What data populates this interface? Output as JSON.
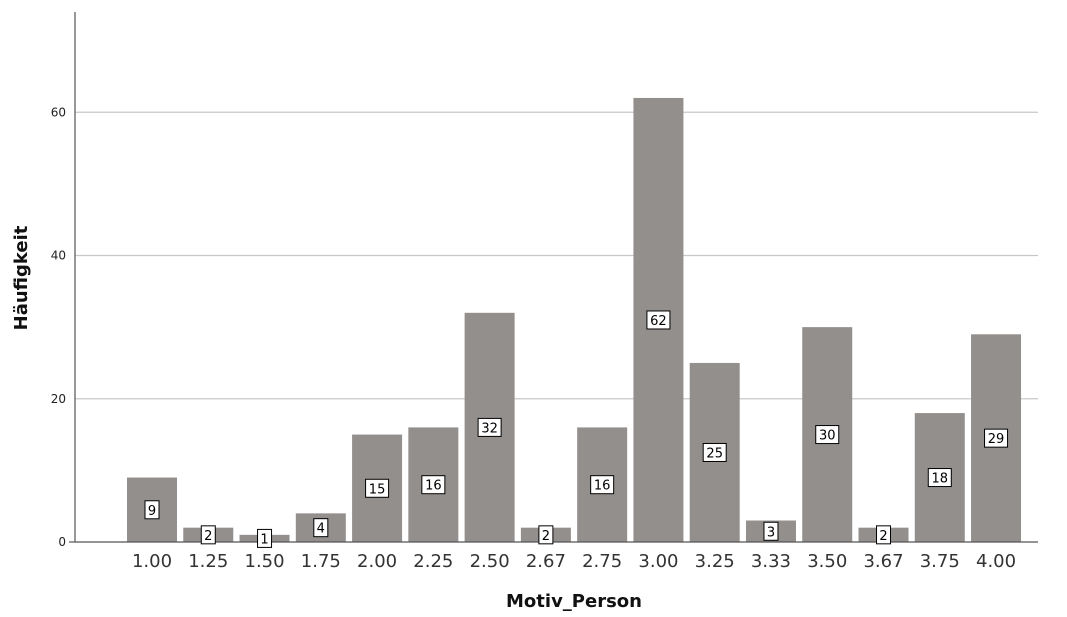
{
  "chart_data": {
    "type": "bar",
    "xlabel": "Motiv_Person",
    "ylabel": "Häufigkeit",
    "categories": [
      "1.00",
      "1.25",
      "1.50",
      "1.75",
      "2.00",
      "2.25",
      "2.50",
      "2.67",
      "2.75",
      "3.00",
      "3.25",
      "3.33",
      "3.50",
      "3.67",
      "3.75",
      "4.00"
    ],
    "values": [
      9,
      2,
      1,
      4,
      15,
      16,
      32,
      2,
      16,
      62,
      25,
      3,
      30,
      2,
      18,
      29
    ],
    "ylim": [
      0,
      74
    ],
    "yticks": [
      0,
      20,
      40,
      60
    ],
    "grid": true,
    "data_labels": true,
    "bar_color": "#938f8d"
  }
}
